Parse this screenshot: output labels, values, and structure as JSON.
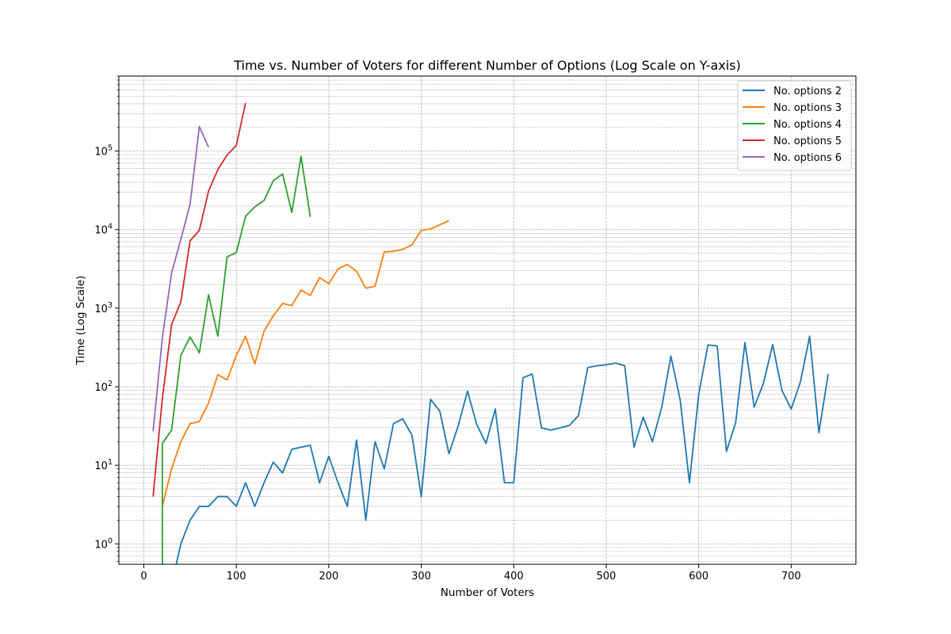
{
  "chart_data": {
    "type": "line",
    "title": "Time vs. Number of Voters for different Number of Options (Log Scale on Y-axis)",
    "xlabel": "Number of Voters",
    "ylabel": "Time (Log Scale)",
    "xlim": [
      -27,
      770
    ],
    "ylim": [
      0.55,
      900000
    ],
    "y_scale": "log",
    "grid": "major and minor, dashed, gray",
    "legend_position": "top-right",
    "x_ticks": [
      0,
      100,
      200,
      300,
      400,
      500,
      600,
      700
    ],
    "x_tick_labels": [
      "0",
      "100",
      "200",
      "300",
      "400",
      "500",
      "600",
      "700"
    ],
    "y_ticks": [
      1,
      10,
      100,
      1000,
      10000,
      100000
    ],
    "y_tick_labels": [
      {
        "base": "10",
        "exp": "0"
      },
      {
        "base": "10",
        "exp": "1"
      },
      {
        "base": "10",
        "exp": "2"
      },
      {
        "base": "10",
        "exp": "3"
      },
      {
        "base": "10",
        "exp": "4"
      },
      {
        "base": "10",
        "exp": "5"
      }
    ],
    "series": [
      {
        "name": "No. options 2",
        "color": "#1f77b4",
        "x": [
          20,
          30,
          40,
          50,
          60,
          70,
          80,
          90,
          100,
          110,
          120,
          130,
          140,
          150,
          160,
          170,
          180,
          190,
          200,
          210,
          220,
          230,
          240,
          250,
          260,
          270,
          280,
          290,
          300,
          310,
          320,
          330,
          340,
          350,
          360,
          370,
          380,
          390,
          400,
          410,
          420,
          430,
          440,
          450,
          460,
          470,
          480,
          490,
          500,
          510,
          520,
          530,
          540,
          550,
          560,
          570,
          580,
          590,
          600,
          610,
          620,
          630,
          640,
          650,
          660,
          670,
          680,
          690,
          700,
          710,
          720,
          730,
          740
        ],
        "y": [
          0.3,
          0.3,
          1,
          2,
          3,
          3,
          4,
          4,
          3,
          6,
          3,
          6,
          11,
          8,
          16,
          17,
          18,
          6,
          13,
          6,
          3,
          21,
          2,
          20,
          9,
          34,
          39,
          24,
          4,
          69,
          49,
          14,
          32,
          88,
          33,
          19,
          52,
          6,
          6,
          130,
          145,
          30,
          28,
          30,
          32,
          43,
          175,
          185,
          190,
          200,
          185,
          17,
          41,
          20,
          55,
          245,
          68,
          6,
          80,
          340,
          330,
          15,
          35,
          365,
          55,
          110,
          345,
          90,
          52,
          115,
          440,
          26,
          145
        ]
      },
      {
        "name": "No. options 3",
        "color": "#ff7f0e",
        "x": [
          20,
          30,
          40,
          50,
          60,
          70,
          80,
          90,
          100,
          110,
          120,
          130,
          140,
          150,
          160,
          170,
          180,
          190,
          200,
          210,
          220,
          230,
          240,
          250,
          260,
          270,
          280,
          290,
          300,
          310,
          320,
          330
        ],
        "y": [
          3,
          9,
          20,
          34,
          36,
          62,
          142,
          122,
          250,
          440,
          195,
          510,
          800,
          1150,
          1080,
          1700,
          1450,
          2450,
          2050,
          3150,
          3600,
          2950,
          1800,
          1900,
          5200,
          5300,
          5600,
          6400,
          9800,
          10200,
          11500,
          13000
        ]
      },
      {
        "name": "No. options 4",
        "color": "#2ca02c",
        "x": [
          20,
          20,
          30,
          40,
          50,
          60,
          70,
          80,
          90,
          100,
          110,
          120,
          130,
          140,
          150,
          160,
          170,
          180
        ],
        "y": [
          0.3,
          19,
          28,
          250,
          430,
          270,
          1480,
          440,
          4500,
          5100,
          14800,
          19500,
          23500,
          42000,
          51000,
          16500,
          86000,
          14500
        ]
      },
      {
        "name": "No. options 5",
        "color": "#d62728",
        "x": [
          10,
          20,
          30,
          40,
          50,
          60,
          70,
          80,
          90,
          100,
          110
        ],
        "y": [
          4,
          70,
          620,
          1200,
          7200,
          9800,
          31000,
          58000,
          89000,
          118000,
          410000
        ]
      },
      {
        "name": "No. options 6",
        "color": "#9467bd",
        "x": [
          10,
          20,
          30,
          40,
          50,
          60,
          70
        ],
        "y": [
          27,
          420,
          2800,
          7500,
          21000,
          205000,
          112000
        ]
      }
    ]
  }
}
